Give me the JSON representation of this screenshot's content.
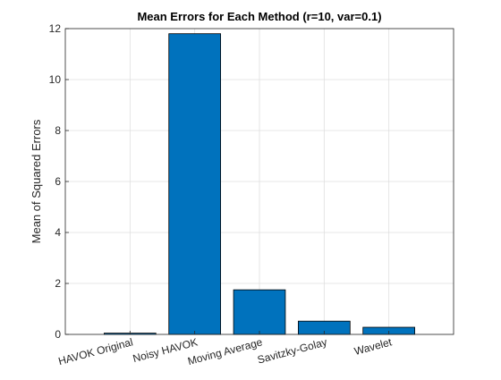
{
  "chart_data": {
    "type": "bar",
    "title": "Mean Errors for Each Method (r=10, var=0.1)",
    "xlabel": "",
    "ylabel": "Mean of Squared Errors",
    "categories": [
      "HAVOK Original",
      "Noisy HAVOK",
      "Moving Average",
      "Savitzky-Golay",
      "Wavelet"
    ],
    "values": [
      0.05,
      11.8,
      1.75,
      0.52,
      0.28
    ],
    "ylim": [
      0,
      12
    ],
    "yticks": [
      0,
      2,
      4,
      6,
      8,
      10,
      12
    ],
    "grid": true,
    "legend": "none",
    "bar_color": "#0072BD",
    "bar_edge_color": "#000000"
  }
}
